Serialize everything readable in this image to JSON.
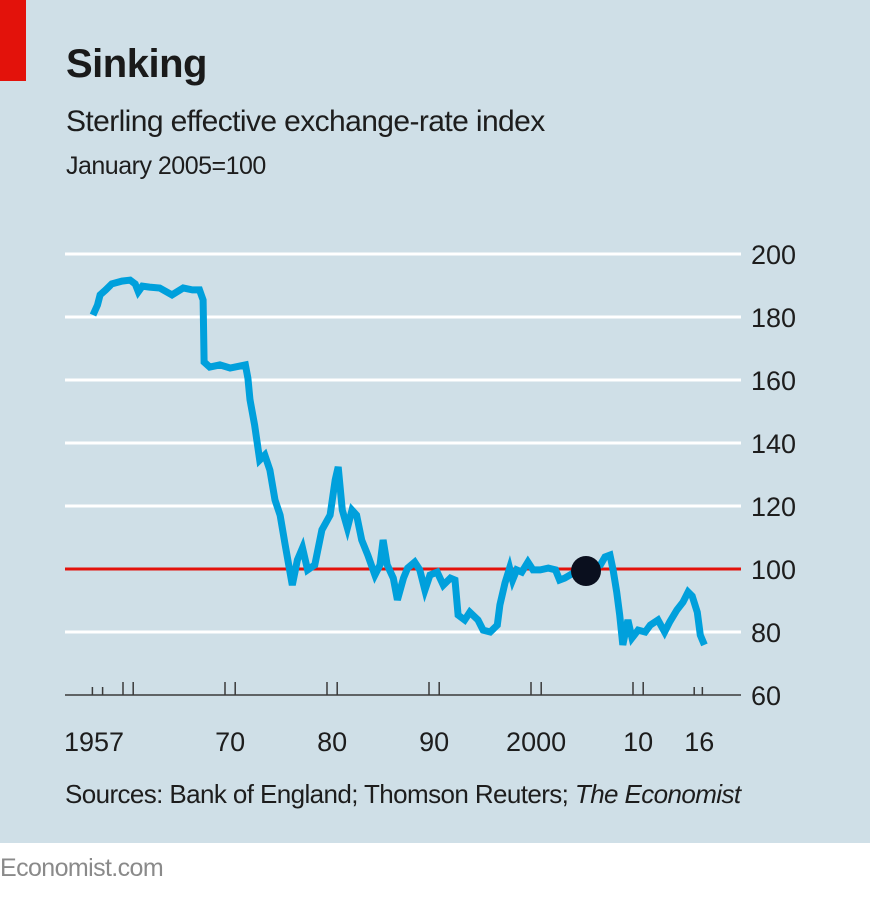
{
  "header": {
    "title": "Sinking",
    "subtitle": "Sterling effective exchange-rate index",
    "unit_note": "January 2005=100"
  },
  "footer": {
    "sources_prefix": "Sources: Bank of England; Thomson Reuters; ",
    "sources_italic": "The Economist",
    "site": "Economist.com"
  },
  "colors": {
    "background": "#cfdfe7",
    "accent_red": "#e3120b",
    "line": "#00a0dc",
    "gridline": "#ffffff",
    "marker": "#0a0f1e",
    "footer_text": "#8a8a8a"
  },
  "chart_data": {
    "type": "line",
    "title": "Sinking",
    "subtitle": "Sterling effective exchange-rate index",
    "ylabel": "January 2005=100",
    "xlabel": "",
    "xlim": [
      1957,
      2017
    ],
    "ylim": [
      60,
      200
    ],
    "yticks": [
      60,
      80,
      100,
      120,
      140,
      160,
      180,
      200
    ],
    "ytick_side": "right",
    "xticks": [
      {
        "year": 1957,
        "label": "1957"
      },
      {
        "year": 1970,
        "label": "70"
      },
      {
        "year": 1980,
        "label": "80"
      },
      {
        "year": 1990,
        "label": "90"
      },
      {
        "year": 2000,
        "label": "2000"
      },
      {
        "year": 2010,
        "label": "10"
      },
      {
        "year": 2016,
        "label": "16"
      }
    ],
    "minor_xticks": [
      1960
    ],
    "grid": true,
    "reference_line": {
      "value": 100,
      "label": "January 2005=100",
      "color": "#e3120b"
    },
    "marker": {
      "year": 2005.0,
      "value": 100,
      "note": "January 2005"
    },
    "legend": "none",
    "series": [
      {
        "name": "Sterling effective exchange-rate index",
        "x": [
          1957.06,
          1957.5,
          1957.75,
          1958.3,
          1958.9,
          1959.9,
          1960.7,
          1961.2,
          1961.5,
          1961.9,
          1962.6,
          1963.6,
          1964.8,
          1965.9,
          1966.8,
          1967.5,
          1967.85,
          1967.95,
          1968.5,
          1969.5,
          1970.5,
          1972.0,
          1972.25,
          1972.45,
          1972.9,
          1973.4,
          1973.9,
          1974.4,
          1974.9,
          1975.4,
          1975.9,
          1976.6,
          1977.1,
          1977.6,
          1978.1,
          1978.8,
          1979.5,
          1980.3,
          1980.8,
          1981.1,
          1981.5,
          1982.0,
          1982.45,
          1982.9,
          1983.4,
          1984.0,
          1984.7,
          1985.2,
          1985.5,
          1985.9,
          1986.5,
          1986.9,
          1987.5,
          1987.9,
          1988.6,
          1989.1,
          1989.6,
          1990.1,
          1990.8,
          1991.4,
          1992.1,
          1992.55,
          1992.85,
          1993.5,
          1994.0,
          1994.8,
          1995.3,
          1996.0,
          1996.7,
          1996.95,
          1997.45,
          1997.9,
          1998.2,
          1998.6,
          1999.1,
          1999.7,
          2000.2,
          2000.9,
          2001.7,
          2002.4,
          2002.8,
          2003.3,
          2004.3,
          2005.0,
          2006.8,
          2007.25,
          2007.75,
          2008.05,
          2008.4,
          2008.7,
          2009.0,
          2009.5,
          2009.9,
          2010.5,
          2011.2,
          2011.7,
          2012.45,
          2013.1,
          2013.6,
          2014.3,
          2014.9,
          2015.4,
          2015.8,
          2016.3,
          2016.6,
          2017.0
        ],
        "y": [
          180.6,
          183.8,
          187,
          188.6,
          190.5,
          191.4,
          191.7,
          190.5,
          188,
          189.8,
          189.5,
          189.2,
          187,
          189.2,
          188.6,
          188.6,
          185.4,
          165.7,
          164.1,
          164.8,
          163.8,
          164.8,
          160.6,
          153.7,
          145.7,
          134.6,
          136.2,
          131.4,
          121.9,
          117.1,
          107.6,
          94.9,
          102.9,
          106.7,
          99.7,
          101.3,
          112.4,
          117.1,
          128.3,
          132.4,
          118.7,
          113,
          118.7,
          117.1,
          109.2,
          104.4,
          98.1,
          101.3,
          109.2,
          101.3,
          97.1,
          90.2,
          97.1,
          100.3,
          102.2,
          99.7,
          93.3,
          98.1,
          99,
          94.9,
          97.1,
          96.5,
          85.4,
          83.8,
          86.3,
          83.8,
          80.6,
          80,
          82.2,
          88.6,
          95.6,
          100.3,
          96.5,
          99.7,
          99,
          102.2,
          99.7,
          99.7,
          100.3,
          99.7,
          96.5,
          97.1,
          99,
          100,
          101.3,
          103.8,
          104.4,
          99.7,
          92.7,
          85.4,
          75.9,
          83.8,
          78.1,
          80.6,
          80,
          82.2,
          83.8,
          80,
          83.2,
          87,
          89.5,
          92.7,
          91.4,
          86.3,
          79,
          75.9
        ]
      }
    ]
  }
}
